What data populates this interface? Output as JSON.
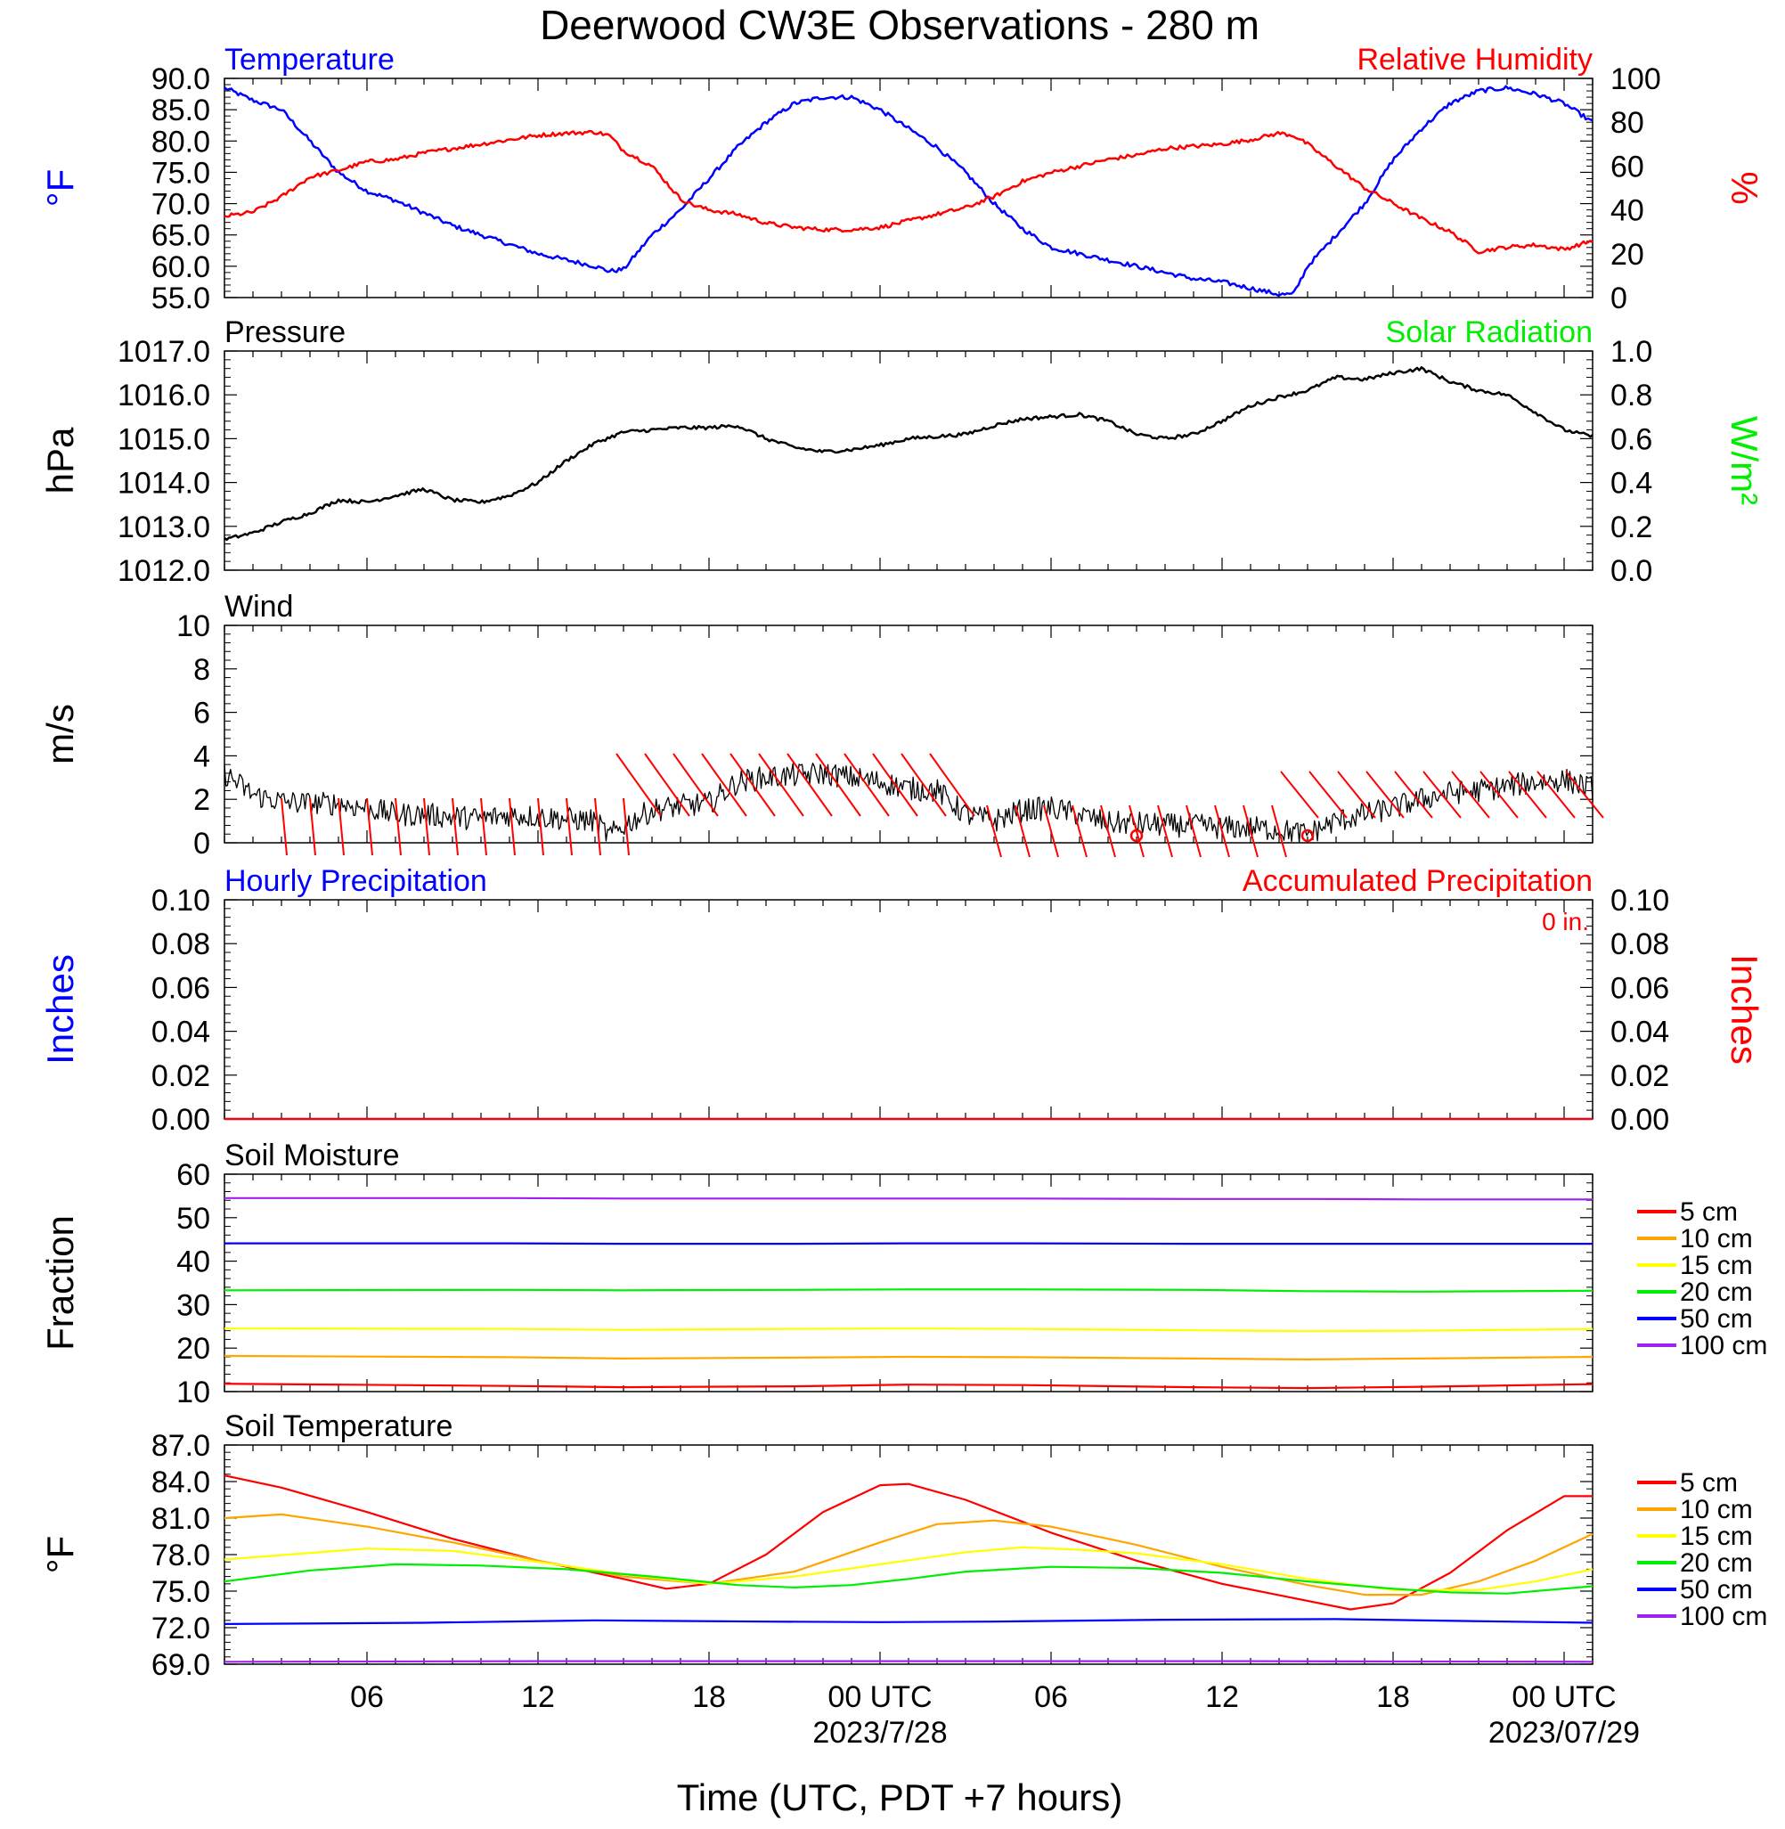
{
  "title": "Deerwood CW3E Observations - 280 m",
  "x_axis": {
    "label": "Time (UTC, PDT +7 hours)",
    "range_hours": [
      -23,
      25
    ],
    "tick_labels": [
      {
        "hour": -18,
        "label": "06"
      },
      {
        "hour": -12,
        "label": "12"
      },
      {
        "hour": -6,
        "label": "18"
      },
      {
        "hour": 0,
        "label": "00 UTC"
      },
      {
        "hour": 6,
        "label": "06"
      },
      {
        "hour": 12,
        "label": "12"
      },
      {
        "hour": 18,
        "label": "18"
      },
      {
        "hour": 24,
        "label": "00 UTC"
      }
    ],
    "date_labels": [
      {
        "hour": 0,
        "label": "2023/7/28"
      },
      {
        "hour": 24,
        "label": "2023/07/29"
      }
    ]
  },
  "colors": {
    "temperature": "#0000ff",
    "humidity": "#ff0000",
    "solar": "#00ee00",
    "wind_barb": "#ff0000",
    "precip_hourly": "#0000ff",
    "precip_accum": "#ff0000",
    "depth_5": "#ff0000",
    "depth_10": "#ffa500",
    "depth_15": "#ffff00",
    "depth_20": "#00ee00",
    "depth_50": "#0000ff",
    "depth_100": "#a020f0"
  },
  "chart_data": [
    {
      "type": "line",
      "panel": "temp_rh",
      "left_title": "Temperature",
      "right_title": "Relative Humidity",
      "ylabel_left": "°F",
      "ylabel_right": "%",
      "ylim_left": [
        55,
        90
      ],
      "yticks_left": [
        "55.0",
        "60.0",
        "65.0",
        "70.0",
        "75.0",
        "80.0",
        "85.0",
        "90.0"
      ],
      "ylim_right": [
        0,
        100
      ],
      "yticks_right": [
        "0",
        "20",
        "40",
        "60",
        "80",
        "100"
      ],
      "series": [
        {
          "name": "Temperature",
          "axis": "left",
          "x": [
            -23,
            -22,
            -21,
            -20,
            -19,
            -18,
            -17,
            -16,
            -15,
            -14,
            -13,
            -12,
            -11,
            -10,
            -9.5,
            -9,
            -8,
            -7,
            -6,
            -5,
            -4,
            -3,
            -2,
            -1,
            0,
            1,
            2,
            3,
            4,
            5,
            6,
            7,
            8,
            9,
            10,
            11,
            12,
            13,
            14,
            14.5,
            15,
            16,
            17,
            18,
            19,
            20,
            21,
            22,
            23,
            24,
            25
          ],
          "y": [
            88.5,
            86.5,
            85,
            80,
            75,
            72,
            70.5,
            68.5,
            66.5,
            65,
            63.5,
            62,
            61,
            60,
            59.2,
            59.5,
            65,
            69,
            74,
            79,
            83,
            86,
            87,
            87,
            85,
            82,
            79,
            75,
            70,
            66,
            63,
            62,
            61,
            60,
            59,
            58,
            57.5,
            56.5,
            55.5,
            55.5,
            60,
            65,
            70,
            77,
            82,
            86,
            88,
            88.5,
            87.5,
            86,
            83
          ]
        },
        {
          "name": "Relative Humidity",
          "axis": "right",
          "x": [
            -23,
            -22,
            -21,
            -20,
            -19,
            -18,
            -17,
            -16,
            -15,
            -14,
            -13,
            -12,
            -11,
            -10,
            -9.5,
            -9,
            -8,
            -7,
            -6.5,
            -6,
            -5,
            -4,
            -3,
            -2,
            -1,
            0,
            1,
            2,
            3,
            4,
            5,
            6,
            7,
            8,
            9,
            10,
            11,
            12,
            13,
            14,
            14.5,
            15,
            16,
            17,
            18,
            19,
            20,
            21,
            22,
            23,
            24,
            25
          ],
          "y": [
            37,
            39,
            46,
            55,
            58,
            62,
            63,
            66,
            68,
            70,
            72,
            74,
            75,
            75.5,
            74,
            67,
            60,
            45,
            42,
            40,
            38,
            34,
            32,
            31,
            31,
            32,
            35,
            38,
            41,
            46,
            53,
            57,
            60,
            63,
            65,
            68,
            69,
            70,
            72,
            75,
            74,
            70,
            60,
            50,
            43,
            36,
            30,
            21,
            23,
            24,
            22,
            26
          ]
        }
      ]
    },
    {
      "type": "line",
      "panel": "pressure",
      "left_title": "Pressure",
      "right_title": "Solar Radiation",
      "ylabel_left": "hPa",
      "ylabel_right": "W/m²",
      "ylim_left": [
        1012,
        1017
      ],
      "yticks_left": [
        "1012.0",
        "1013.0",
        "1014.0",
        "1015.0",
        "1016.0",
        "1017.0"
      ],
      "ylim_right": [
        0,
        1
      ],
      "yticks_right": [
        "0.0",
        "0.2",
        "0.4",
        "0.6",
        "0.8",
        "1.0"
      ],
      "series": [
        {
          "name": "Pressure",
          "axis": "left",
          "x": [
            -23,
            -22,
            -21,
            -20,
            -19,
            -18,
            -17,
            -16,
            -15,
            -14,
            -13,
            -12,
            -11,
            -10,
            -9,
            -8,
            -7,
            -6,
            -5,
            -4,
            -3,
            -2,
            -1,
            0,
            1,
            2,
            3,
            4,
            5,
            6,
            7,
            8,
            9,
            10,
            11,
            12,
            13,
            14,
            15,
            16,
            17,
            18,
            19,
            20,
            21,
            22,
            23,
            24,
            25
          ],
          "y": [
            1012.7,
            1012.85,
            1013.1,
            1013.3,
            1013.6,
            1013.55,
            1013.7,
            1013.85,
            1013.6,
            1013.55,
            1013.7,
            1014.0,
            1014.5,
            1014.9,
            1015.15,
            1015.2,
            1015.25,
            1015.25,
            1015.3,
            1015.0,
            1014.8,
            1014.7,
            1014.75,
            1014.85,
            1015.0,
            1015.05,
            1015.1,
            1015.3,
            1015.45,
            1015.5,
            1015.55,
            1015.4,
            1015.1,
            1015.0,
            1015.1,
            1015.4,
            1015.75,
            1015.95,
            1016.1,
            1016.4,
            1016.35,
            1016.5,
            1016.6,
            1016.3,
            1016.1,
            1016.0,
            1015.6,
            1015.2,
            1015.05
          ]
        }
      ]
    },
    {
      "type": "line",
      "panel": "wind",
      "left_title": "Wind",
      "ylabel_left": "m/s",
      "ylim_left": [
        0,
        10
      ],
      "yticks_left": [
        "0",
        "2",
        "4",
        "6",
        "8",
        "10"
      ],
      "series": [
        {
          "name": "Wind speed",
          "axis": "left",
          "x": [
            -23,
            -22,
            -21,
            -20,
            -19,
            -18,
            -17,
            -16,
            -15,
            -14,
            -13,
            -12,
            -11,
            -10,
            -9.5,
            -9,
            -8,
            -7,
            -6,
            -5,
            -4,
            -3,
            -2,
            -1,
            0,
            1,
            2,
            3,
            4,
            5,
            6,
            7,
            8,
            9,
            10,
            11,
            12,
            13,
            14,
            15,
            16,
            17,
            18,
            19,
            20,
            21,
            22,
            23,
            24,
            25
          ],
          "y": [
            3.2,
            2.2,
            1.9,
            1.8,
            1.8,
            1.6,
            1.3,
            1.3,
            1.2,
            1.1,
            1.3,
            1.2,
            1.1,
            1.0,
            0.3,
            0.8,
            1.5,
            1.7,
            1.8,
            2.8,
            3.0,
            3.1,
            3.2,
            3.0,
            2.8,
            2.5,
            2.4,
            1.3,
            1.0,
            1.5,
            1.6,
            1.3,
            0.9,
            0.9,
            0.8,
            0.8,
            0.7,
            0.7,
            0.6,
            0.4,
            1.0,
            1.3,
            1.6,
            2.0,
            2.3,
            2.4,
            2.6,
            2.8,
            2.9,
            2.5
          ]
        }
      ],
      "barb_hours": [
        -21,
        -20,
        -19,
        -18,
        -17,
        -16,
        -15,
        -14,
        -13,
        -12,
        -11,
        -10,
        -9,
        -8,
        -7,
        -6,
        -5,
        -4,
        -3,
        -2,
        -1,
        0,
        1,
        2,
        3,
        4,
        5,
        6,
        7,
        8,
        9,
        10,
        11,
        12,
        13,
        14,
        15,
        16,
        17,
        18,
        19,
        20,
        21,
        22,
        23,
        24,
        25
      ],
      "calm_hours": [
        9,
        15
      ]
    },
    {
      "type": "line",
      "panel": "precip",
      "left_title": "Hourly Precipitation",
      "right_title": "Accumulated Precipitation",
      "accumulated_total": "0 in.",
      "ylabel_left": "Inches",
      "ylabel_right": "Inches",
      "ylim_left": [
        0,
        0.1
      ],
      "yticks_left": [
        "0.00",
        "0.02",
        "0.04",
        "0.06",
        "0.08",
        "0.10"
      ],
      "ylim_right": [
        0,
        0.1
      ],
      "yticks_right": [
        "0.00",
        "0.02",
        "0.04",
        "0.06",
        "0.08",
        "0.10"
      ],
      "series": [
        {
          "name": "Hourly Precipitation",
          "axis": "left",
          "x": [
            -23,
            25
          ],
          "y": [
            0,
            0
          ]
        },
        {
          "name": "Accumulated Precipitation",
          "axis": "right",
          "x": [
            -23,
            25
          ],
          "y": [
            0,
            0
          ]
        }
      ]
    },
    {
      "type": "line",
      "panel": "soil_moisture",
      "left_title": "Soil Moisture",
      "ylabel_left": "Fraction",
      "ylim_left": [
        10,
        60
      ],
      "yticks_left": [
        "10",
        "20",
        "30",
        "40",
        "50",
        "60"
      ],
      "legend": [
        "5 cm",
        "10 cm",
        "15 cm",
        "20 cm",
        "50 cm",
        "100 cm"
      ],
      "series": [
        {
          "name": "5 cm",
          "axis": "left",
          "x": [
            -23,
            -13,
            -9,
            -3,
            1,
            5,
            11,
            15,
            19,
            25
          ],
          "y": [
            11.8,
            11.3,
            11.0,
            11.2,
            11.6,
            11.5,
            11.0,
            10.8,
            11.1,
            11.7
          ]
        },
        {
          "name": "10 cm",
          "axis": "left",
          "x": [
            -23,
            -13,
            -9,
            -3,
            1,
            5,
            11,
            15,
            19,
            25
          ],
          "y": [
            18.2,
            17.9,
            17.6,
            17.8,
            18.0,
            17.9,
            17.6,
            17.4,
            17.6,
            18.0
          ]
        },
        {
          "name": "15 cm",
          "axis": "left",
          "x": [
            -23,
            -13,
            -9,
            -3,
            1,
            5,
            11,
            15,
            19,
            25
          ],
          "y": [
            24.5,
            24.4,
            24.2,
            24.4,
            24.5,
            24.4,
            24.1,
            23.9,
            24.0,
            24.4
          ]
        },
        {
          "name": "20 cm",
          "axis": "left",
          "x": [
            -23,
            -13,
            -9,
            -3,
            1,
            5,
            11,
            15,
            19,
            25
          ],
          "y": [
            33.3,
            33.4,
            33.3,
            33.4,
            33.5,
            33.5,
            33.4,
            33.1,
            33.0,
            33.2
          ]
        },
        {
          "name": "50 cm",
          "axis": "left",
          "x": [
            -23,
            -13,
            -9,
            -3,
            1,
            5,
            11,
            15,
            19,
            25
          ],
          "y": [
            44.1,
            44.1,
            44.0,
            44.0,
            44.1,
            44.1,
            44.0,
            44.0,
            44.0,
            44.0
          ]
        },
        {
          "name": "100 cm",
          "axis": "left",
          "x": [
            -23,
            -13,
            -9,
            -3,
            1,
            5,
            11,
            15,
            19,
            25
          ],
          "y": [
            54.5,
            54.5,
            54.4,
            54.4,
            54.4,
            54.4,
            54.3,
            54.3,
            54.2,
            54.2
          ]
        }
      ]
    },
    {
      "type": "line",
      "panel": "soil_temperature",
      "left_title": "Soil Temperature",
      "ylabel_left": "°F",
      "ylim_left": [
        69,
        87
      ],
      "yticks_left": [
        "69.0",
        "72.0",
        "75.0",
        "78.0",
        "81.0",
        "84.0",
        "87.0"
      ],
      "legend": [
        "5 cm",
        "10 cm",
        "15 cm",
        "20 cm",
        "50 cm",
        "100 cm"
      ],
      "series": [
        {
          "name": "5 cm",
          "axis": "left",
          "x": [
            -23,
            -21,
            -18,
            -15,
            -12,
            -9,
            -7.5,
            -6,
            -4,
            -2,
            0,
            1,
            3,
            6,
            9,
            12,
            15,
            16.5,
            18,
            20,
            22,
            24,
            25
          ],
          "y": [
            84.5,
            83.5,
            81.5,
            79.3,
            77.5,
            76,
            75.2,
            75.6,
            78,
            81.5,
            83.7,
            83.8,
            82.5,
            79.8,
            77.5,
            75.6,
            74.2,
            73.5,
            74,
            76.5,
            80,
            82.8,
            82.8
          ]
        },
        {
          "name": "10 cm",
          "axis": "left",
          "x": [
            -23,
            -21,
            -18,
            -15,
            -12,
            -9,
            -6,
            -3,
            0,
            2,
            4,
            6,
            9,
            12,
            15,
            17,
            19,
            21,
            23,
            25
          ],
          "y": [
            81,
            81.3,
            80.3,
            79,
            77.5,
            76.2,
            75.6,
            76.6,
            79,
            80.5,
            80.8,
            80.3,
            78.8,
            77,
            75.5,
            74.7,
            74.7,
            75.8,
            77.5,
            79.7
          ]
        },
        {
          "name": "15 cm",
          "axis": "left",
          "x": [
            -23,
            -18,
            -15,
            -12,
            -9,
            -6,
            -3,
            0,
            3,
            5,
            7,
            9,
            12,
            15,
            18,
            21,
            23,
            25
          ],
          "y": [
            77.6,
            78.5,
            78.3,
            77.4,
            76.4,
            75.6,
            76.2,
            77.2,
            78.2,
            78.6,
            78.4,
            78.1,
            77.2,
            76,
            75.1,
            75.1,
            75.8,
            76.8
          ]
        },
        {
          "name": "20 cm",
          "axis": "left",
          "x": [
            -23,
            -20,
            -17,
            -14,
            -11,
            -8,
            -5,
            -3,
            -1,
            1,
            3,
            6,
            9,
            12,
            15,
            18,
            20,
            22,
            25
          ],
          "y": [
            75.8,
            76.7,
            77.2,
            77.1,
            76.8,
            76.2,
            75.5,
            75.3,
            75.5,
            76,
            76.6,
            77,
            76.9,
            76.5,
            75.8,
            75.2,
            74.9,
            74.8,
            75.4
          ]
        },
        {
          "name": "50 cm",
          "axis": "left",
          "x": [
            -23,
            -16,
            -10,
            -4,
            0,
            4,
            10,
            16,
            22,
            25
          ],
          "y": [
            72.3,
            72.4,
            72.6,
            72.5,
            72.45,
            72.5,
            72.65,
            72.7,
            72.5,
            72.4
          ]
        },
        {
          "name": "100 cm",
          "axis": "left",
          "x": [
            -23,
            -12,
            0,
            12,
            25
          ],
          "y": [
            69.2,
            69.25,
            69.25,
            69.25,
            69.2
          ]
        }
      ]
    }
  ]
}
